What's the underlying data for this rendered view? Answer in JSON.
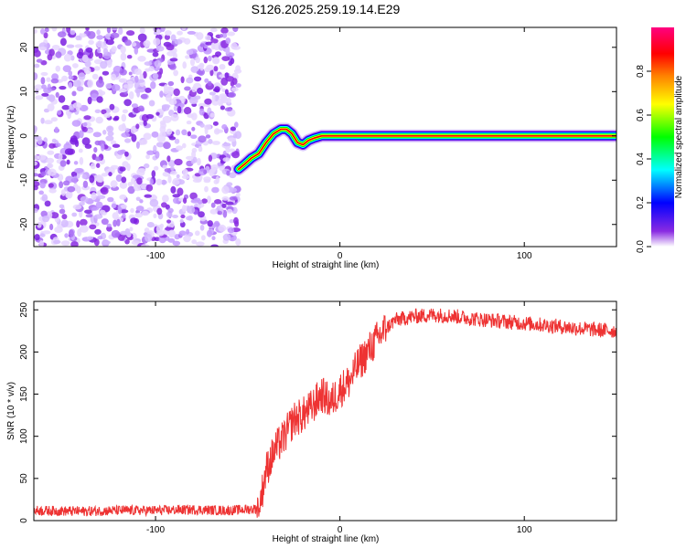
{
  "title": "S126.2025.259.19.14.E29",
  "chart_data": [
    {
      "type": "heatmap",
      "xlabel": "Height of straight line (km)",
      "ylabel": "Frequency (Hz)",
      "xlim": [
        -166,
        150
      ],
      "ylim": [
        -25,
        24.5
      ],
      "xticks": [
        -100,
        0,
        100
      ],
      "yticks": [
        -20,
        -10,
        0,
        10,
        20
      ],
      "noise_region_x": [
        -166,
        -55
      ],
      "ridge": {
        "x": [
          -55,
          -52,
          -48,
          -44,
          -40,
          -36,
          -32,
          -29,
          -26,
          -23,
          -20,
          -17,
          -14,
          -10,
          -5,
          0,
          10,
          20,
          40,
          60,
          80,
          100,
          120,
          140,
          150
        ],
        "y": [
          -7.5,
          -6.5,
          -5,
          -4,
          -1.5,
          0.5,
          1.5,
          1.5,
          0.5,
          -1.5,
          -2,
          -1,
          -0.5,
          0,
          0,
          0,
          0,
          0,
          0,
          0,
          0,
          0,
          0,
          0,
          0
        ]
      },
      "colorbar": {
        "label": "Normalized spectral amplitude",
        "range": [
          0,
          1
        ],
        "ticks": [
          0.0,
          0.2,
          0.4,
          0.6,
          0.8
        ],
        "tick_labels": [
          "0.0",
          "0.2",
          "0.4",
          "0.6",
          "0.8"
        ],
        "colors": [
          "#ffffff",
          "#8a2be2",
          "#0000ff",
          "#00ffff",
          "#00ff00",
          "#ffff00",
          "#ff8000",
          "#ff0000",
          "#ff0080"
        ]
      },
      "grid": false
    },
    {
      "type": "line",
      "xlabel": "Height of straight line (km)",
      "ylabel": "SNR (10 * v/v)",
      "xlim": [
        -166,
        150
      ],
      "ylim": [
        0,
        260
      ],
      "xticks": [
        -100,
        0,
        100
      ],
      "yticks": [
        0,
        50,
        100,
        150,
        200,
        250
      ],
      "series": [
        {
          "color": "#ee3333",
          "x": [
            -166,
            -140,
            -120,
            -100,
            -80,
            -60,
            -45,
            -43,
            -40,
            -35,
            -30,
            -25,
            -20,
            -15,
            -10,
            -5,
            0,
            5,
            10,
            15,
            20,
            25,
            30,
            40,
            50,
            60,
            70,
            80,
            100,
            120,
            140,
            150
          ],
          "y": [
            12,
            11,
            12,
            12,
            13,
            12,
            14,
            25,
            60,
            85,
            100,
            120,
            125,
            135,
            150,
            140,
            155,
            165,
            185,
            200,
            215,
            228,
            238,
            242,
            244,
            243,
            240,
            238,
            234,
            230,
            226,
            225
          ]
        }
      ],
      "grid": false
    }
  ]
}
